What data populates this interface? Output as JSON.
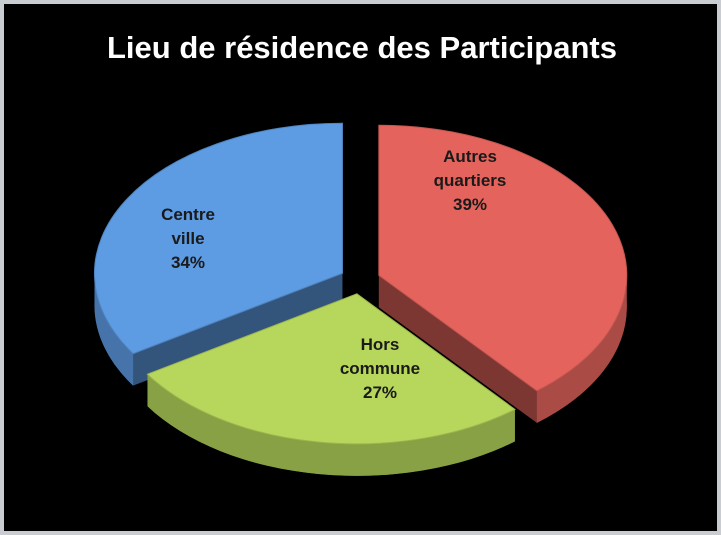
{
  "chart_data": {
    "type": "pie",
    "title": "Lieu de résidence des Participants",
    "categories": [
      "Autres quartiers",
      "Hors commune",
      "Centre ville"
    ],
    "values": [
      39,
      27,
      34
    ],
    "value_labels": [
      "39%",
      "27%",
      "34%"
    ],
    "colors": [
      "#e4645d",
      "#b7d65c",
      "#5d9be2"
    ]
  }
}
